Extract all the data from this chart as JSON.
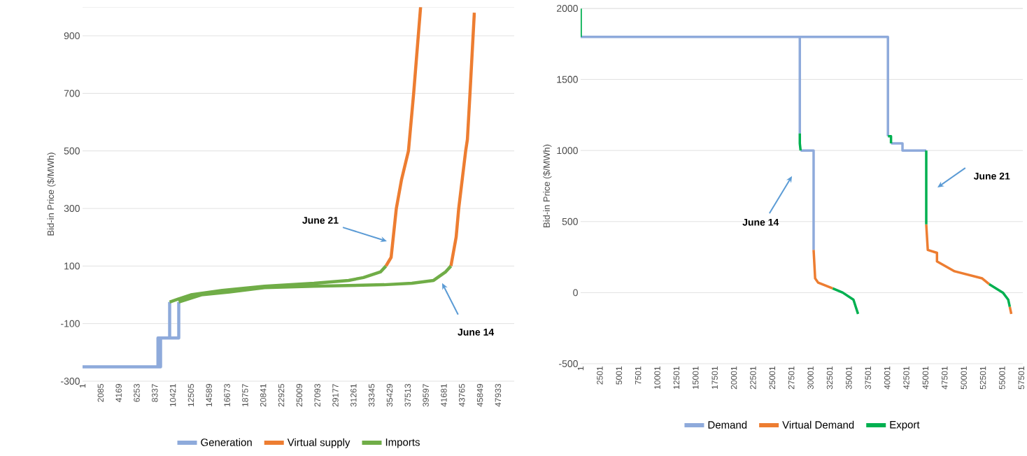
{
  "chart_data": [
    {
      "type": "line",
      "ylabel": "Bid-in Price ($/MWh)",
      "xlim": [
        1,
        49800
      ],
      "ylim": [
        -300,
        1000
      ],
      "xticks": [
        1,
        2085,
        4169,
        6253,
        8337,
        10421,
        12505,
        14589,
        16673,
        18757,
        20841,
        22925,
        25009,
        27093,
        29177,
        31261,
        33345,
        35429,
        37513,
        39597,
        41681,
        43765,
        45849,
        47933
      ],
      "yticks": [
        -300,
        -100,
        100,
        300,
        500,
        700,
        900
      ],
      "grid": "y",
      "legend": "bottom",
      "series": [
        {
          "name": "Generation",
          "color": "#8eaadb",
          "x": [
            1,
            9000,
            9000,
            11100,
            11100,
            null,
            1,
            8700,
            8700,
            10050,
            10050
          ],
          "values": [
            -250,
            -250,
            -150,
            -150,
            -25,
            null,
            -250,
            -250,
            -150,
            -150,
            -25
          ]
        },
        {
          "name": "Virtual supply",
          "color": "#ed7d31",
          "x": [
            42500,
            43100,
            43400,
            43800,
            44200,
            44400,
            44700,
            45200,
            null,
            35000,
            35600,
            36200,
            36800,
            37600,
            38200,
            39000
          ],
          "values": [
            100,
            200,
            300,
            400,
            500,
            540,
            700,
            980,
            null,
            100,
            130,
            300,
            400,
            500,
            700,
            1000
          ]
        },
        {
          "name": "Imports",
          "color": "#70ad47",
          "x": [
            11100,
            13700,
            16950,
            21000,
            26700,
            34800,
            38000,
            40500,
            41900,
            42500,
            null,
            10050,
            12500,
            16100,
            21000,
            26700,
            30700,
            32400,
            34400,
            35000
          ],
          "values": [
            -25,
            0,
            10,
            25,
            30,
            35,
            40,
            50,
            80,
            100,
            null,
            -25,
            0,
            15,
            30,
            40,
            50,
            60,
            80,
            100
          ]
        }
      ],
      "annotations": [
        "June 21",
        "June 14"
      ]
    },
    {
      "type": "line",
      "ylabel": "Bid-in Price ($/MWh)",
      "xlim": [
        1,
        57700
      ],
      "ylim": [
        -500,
        2000
      ],
      "xticks": [
        1,
        2501,
        5001,
        7501,
        10001,
        12501,
        15001,
        17501,
        20001,
        22501,
        25001,
        27501,
        30001,
        32501,
        35001,
        37501,
        40001,
        42501,
        45001,
        47501,
        50001,
        52501,
        55001,
        57501
      ],
      "yticks": [
        -500,
        0,
        500,
        1000,
        1500,
        2000
      ],
      "grid": "y",
      "legend": "bottom",
      "series": [
        {
          "name": "Demand",
          "color": "#8eaadb",
          "x": [
            1,
            28600,
            28600,
            null,
            28700,
            30400,
            30400,
            null,
            28600,
            40100,
            40100,
            null,
            40500,
            42000,
            42000,
            45100
          ],
          "values": [
            1800,
            1800,
            1120,
            null,
            1000,
            1000,
            300,
            null,
            1800,
            1800,
            1100,
            null,
            1050,
            1050,
            1000,
            1000
          ]
        },
        {
          "name": "Virtual Demand",
          "color": "#ed7d31",
          "x": [
            30400,
            30600,
            31000,
            32900,
            null,
            45100,
            45300,
            46500,
            46500,
            48800,
            52400,
            53300,
            null,
            56000,
            56200
          ],
          "values": [
            300,
            100,
            70,
            30,
            null,
            480,
            300,
            280,
            220,
            150,
            100,
            60,
            null,
            -100,
            -150
          ]
        },
        {
          "name": "Export",
          "color": "#00b050",
          "x": [
            1,
            1,
            null,
            28600,
            28600,
            28700,
            null,
            32900,
            34200,
            35600,
            35900,
            36200,
            null,
            40100,
            40500,
            40500,
            null,
            45100,
            45100,
            null,
            53300,
            55100,
            55800,
            56000
          ],
          "values": [
            2000,
            1800,
            null,
            1120,
            1050,
            1000,
            null,
            30,
            0,
            -50,
            -100,
            -150,
            null,
            1100,
            1100,
            1050,
            null,
            1000,
            480,
            null,
            60,
            0,
            -50,
            -100
          ]
        }
      ],
      "annotations": [
        "June 14",
        "June 21"
      ]
    }
  ]
}
